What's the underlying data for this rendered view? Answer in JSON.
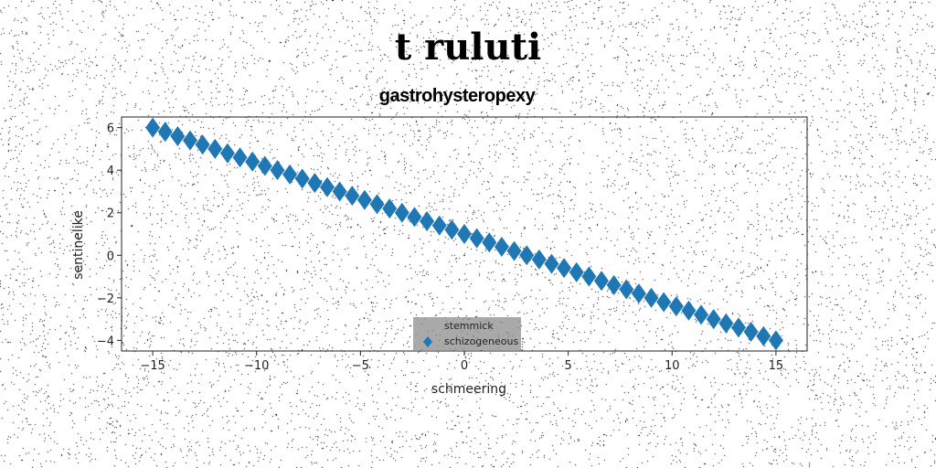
{
  "suptitle": "t ruluti",
  "subtitle": "gastrohysteropexy",
  "colors": {
    "series": "#1f77b4",
    "background": "#ffffff"
  },
  "chart_data": {
    "type": "scatter",
    "xlabel": "schmeering",
    "ylabel": "sentinelike",
    "xlim": [
      -16.5,
      16.5
    ],
    "ylim": [
      -4.5,
      6.5
    ],
    "xticks": [
      -15,
      -10,
      -5,
      0,
      5,
      10,
      15
    ],
    "yticks": [
      -4,
      -2,
      0,
      2,
      4,
      6
    ],
    "grid": false,
    "legend_placement": "lower center",
    "series": [
      {
        "name": "stemmick",
        "marker": "none",
        "x": [],
        "y": []
      },
      {
        "name": "schizogeneous",
        "marker": "diamond",
        "x": [
          -15,
          -14.4,
          -13.8,
          -13.2,
          -12.6,
          -12,
          -11.4,
          -10.8,
          -10.2,
          -9.6,
          -9,
          -8.4,
          -7.8,
          -7.2,
          -6.6,
          -6,
          -5.4,
          -4.8,
          -4.2,
          -3.6,
          -3,
          -2.4,
          -1.8,
          -1.2,
          -0.6,
          0,
          0.6,
          1.2,
          1.8,
          2.4,
          3,
          3.6,
          4.2,
          4.8,
          5.4,
          6,
          6.6,
          7.2,
          7.8,
          8.4,
          9,
          9.6,
          10.2,
          10.8,
          11.4,
          12,
          12.6,
          13.2,
          13.8,
          14.4,
          15
        ],
        "y": [
          6,
          5.8,
          5.6,
          5.4,
          5.2,
          5,
          4.8,
          4.6,
          4.4,
          4.2,
          4,
          3.8,
          3.6,
          3.4,
          3.2,
          3,
          2.8,
          2.6,
          2.4,
          2.2,
          2,
          1.8,
          1.6,
          1.4,
          1.2,
          1,
          0.8,
          0.6,
          0.4,
          0.2,
          0,
          -0.2,
          -0.4,
          -0.6,
          -0.8,
          -1,
          -1.2,
          -1.4,
          -1.6,
          -1.8,
          -2,
          -2.2,
          -2.4,
          -2.6,
          -2.8,
          -3,
          -3.2,
          -3.4,
          -3.6,
          -3.8,
          -4
        ]
      }
    ]
  }
}
